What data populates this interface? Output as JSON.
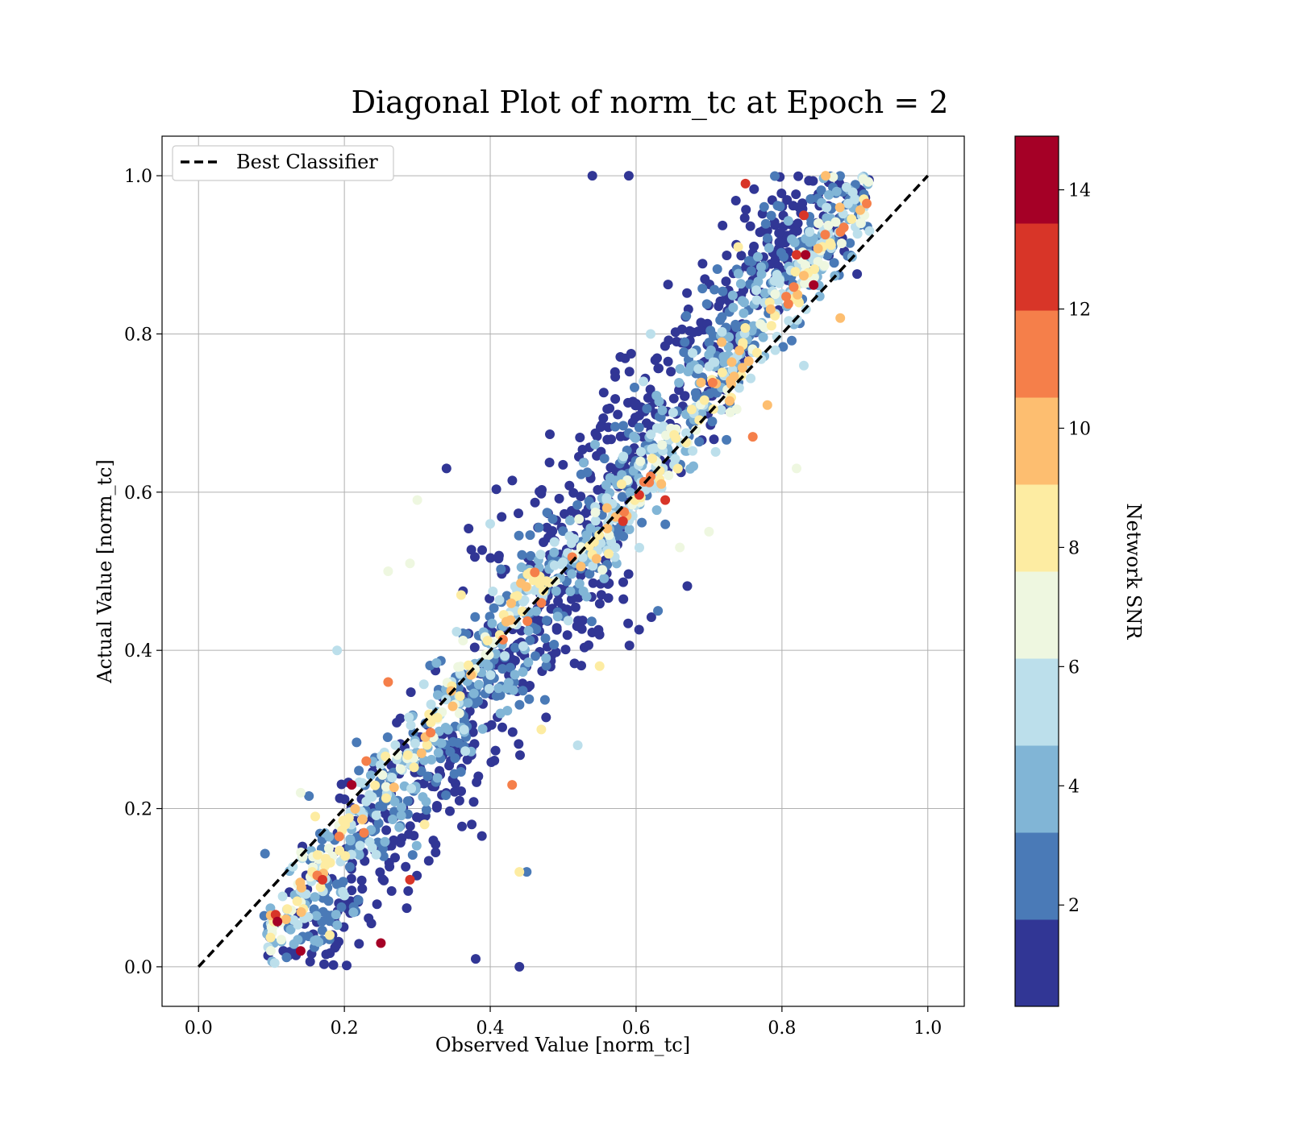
{
  "chart_data": {
    "type": "scatter",
    "title": "Diagonal Plot of norm_tc at Epoch = 2",
    "xlabel": "Observed Value [norm_tc]",
    "ylabel": "Actual Value [norm_tc]",
    "xlim": [
      -0.05,
      1.05
    ],
    "ylim": [
      -0.05,
      1.05
    ],
    "xticks": [
      "0.0",
      "0.2",
      "0.4",
      "0.6",
      "0.8",
      "1.0"
    ],
    "yticks": [
      "0.0",
      "0.2",
      "0.4",
      "0.6",
      "0.8",
      "1.0"
    ],
    "grid": true,
    "legend": {
      "placement": "top-left",
      "entries": [
        {
          "label": "Best Classifier",
          "style": "dashed",
          "color": "#000000"
        }
      ]
    },
    "reference_line": {
      "name": "Best Classifier",
      "x": [
        0,
        1
      ],
      "y": [
        0,
        1
      ]
    },
    "colorbar": {
      "label": "Network SNR",
      "range": [
        0.3,
        14.9
      ],
      "ticks": [
        "2",
        "4",
        "6",
        "8",
        "10",
        "12",
        "14"
      ],
      "bin_colors": [
        "#313695",
        "#4a7ab7",
        "#81b5d6",
        "#bcdfeb",
        "#eef7e0",
        "#fdeca2",
        "#fdbe70",
        "#f57f4a",
        "#d83528",
        "#a50026"
      ]
    },
    "series": [
      {
        "note": "representative sample of ~2000 points; color encodes Network SNR",
        "points": [
          [
            0.13,
            0.02,
            0.5
          ],
          [
            0.14,
            0.02,
            14.5
          ],
          [
            0.17,
            0.11,
            13.2
          ],
          [
            0.21,
            0.23,
            13.5
          ],
          [
            0.25,
            0.03,
            14.2
          ],
          [
            0.29,
            0.11,
            12.6
          ],
          [
            0.26,
            0.36,
            11.4
          ],
          [
            0.23,
            0.26,
            11.2
          ],
          [
            0.43,
            0.23,
            11.0
          ],
          [
            0.47,
            0.46,
            11.6
          ],
          [
            0.62,
            0.62,
            11.8
          ],
          [
            0.64,
            0.59,
            12.8
          ],
          [
            0.76,
            0.67,
            11.3
          ],
          [
            0.75,
            0.99,
            12.9
          ],
          [
            0.82,
            0.9,
            12.7
          ],
          [
            0.83,
            0.95,
            13.1
          ],
          [
            0.88,
            0.82,
            9.6
          ],
          [
            0.86,
            1.0,
            9.5
          ],
          [
            0.78,
            0.71,
            9.8
          ],
          [
            0.12,
            0.06,
            9.9
          ],
          [
            0.56,
            0.58,
            10.2
          ],
          [
            0.74,
            0.91,
            8.2
          ],
          [
            0.47,
            0.3,
            8.5
          ],
          [
            0.55,
            0.38,
            8.4
          ],
          [
            0.58,
            0.61,
            8.0
          ],
          [
            0.36,
            0.47,
            8.9
          ],
          [
            0.18,
            0.04,
            8.3
          ],
          [
            0.44,
            0.12,
            8.1
          ],
          [
            0.16,
            0.19,
            8.6
          ],
          [
            0.31,
            0.18,
            8.7
          ],
          [
            0.1,
            0.05,
            6.5
          ],
          [
            0.26,
            0.5,
            6.8
          ],
          [
            0.3,
            0.59,
            6.7
          ],
          [
            0.29,
            0.51,
            7.1
          ],
          [
            0.14,
            0.22,
            6.9
          ],
          [
            0.66,
            0.53,
            6.6
          ],
          [
            0.7,
            0.55,
            7.2
          ],
          [
            0.82,
            0.63,
            6.4
          ],
          [
            0.61,
            0.74,
            6.1
          ],
          [
            0.85,
            0.94,
            7.0
          ],
          [
            0.19,
            0.4,
            5.3
          ],
          [
            0.4,
            0.56,
            5.6
          ],
          [
            0.62,
            0.8,
            5.1
          ],
          [
            0.9,
            0.97,
            5.5
          ],
          [
            0.52,
            0.28,
            5.2
          ],
          [
            0.2,
            0.09,
            5.8
          ],
          [
            0.92,
            0.93,
            5.4
          ],
          [
            0.83,
            0.76,
            5.0
          ],
          [
            0.34,
            0.63,
            1.5
          ],
          [
            0.54,
            1.0,
            1.2
          ],
          [
            0.59,
            1.0,
            1.0
          ],
          [
            0.44,
            0.0,
            1.4
          ],
          [
            0.38,
            0.01,
            1.1
          ],
          [
            0.63,
            0.45,
            2.1
          ],
          [
            0.45,
            0.12,
            2.4
          ]
        ]
      }
    ]
  }
}
